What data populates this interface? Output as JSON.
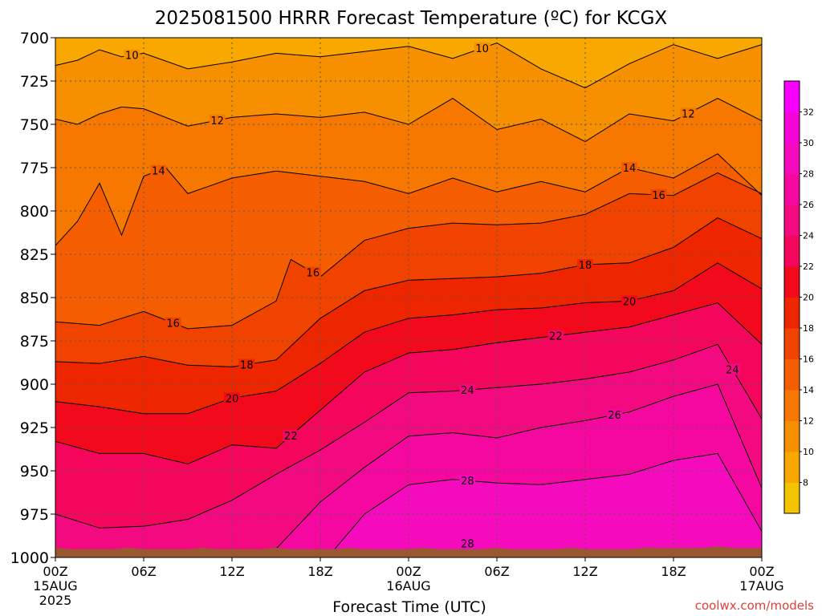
{
  "colors": {
    "background": "#ffffff",
    "ground": "#9a5832",
    "contour_line": "#000000",
    "grid": "#555555",
    "credit": "#e0403a"
  },
  "credit": "coolwx.com/models",
  "chart_data": {
    "type": "contour",
    "title": "2025081500 HRRR Forecast Temperature (ºC) for KCGX",
    "xlabel": "Forecast Time (UTC)",
    "ylabel": "",
    "x_ticks": [
      {
        "label": "00Z",
        "sub1": "15AUG",
        "sub2": "2025"
      },
      {
        "label": "06Z",
        "sub1": "",
        "sub2": ""
      },
      {
        "label": "12Z",
        "sub1": "",
        "sub2": ""
      },
      {
        "label": "18Z",
        "sub1": "",
        "sub2": ""
      },
      {
        "label": "00Z",
        "sub1": "16AUG",
        "sub2": ""
      },
      {
        "label": "06Z",
        "sub1": "",
        "sub2": ""
      },
      {
        "label": "12Z",
        "sub1": "",
        "sub2": ""
      },
      {
        "label": "18Z",
        "sub1": "",
        "sub2": ""
      },
      {
        "label": "00Z",
        "sub1": "17AUG",
        "sub2": ""
      }
    ],
    "xlim_hours": [
      0,
      48
    ],
    "y_ticks": [
      "700",
      "725",
      "750",
      "775",
      "800",
      "825",
      "850",
      "875",
      "900",
      "925",
      "950",
      "975",
      "1000"
    ],
    "ylim": [
      700,
      1000
    ],
    "grid": true,
    "colorbar": {
      "placement": "right",
      "bounds": [
        6,
        8,
        10,
        12,
        14,
        16,
        18,
        20,
        22,
        24,
        26,
        28,
        30,
        32,
        34
      ],
      "tick_labels": [
        "8",
        "10",
        "12",
        "14",
        "16",
        "18",
        "20",
        "22",
        "24",
        "26",
        "28",
        "30",
        "32"
      ],
      "colors": [
        "#f5c400",
        "#f8a800",
        "#f79000",
        "#f67800",
        "#f45e00",
        "#f04300",
        "#ee2600",
        "#f20a1c",
        "#f3065c",
        "#f40a80",
        "#f508a0",
        "#f50abe",
        "#f504d8",
        "#f800ff"
      ]
    },
    "ground_pressure_hpa": 995,
    "isotherms": [
      {
        "level": 10,
        "x": [
          0,
          1.5,
          3,
          4.5,
          6,
          9,
          12,
          15,
          18,
          21,
          24,
          27,
          30,
          33,
          36,
          39,
          42,
          45,
          48
        ],
        "p": [
          716,
          713,
          707,
          711,
          709,
          718,
          714,
          709,
          711,
          708,
          705,
          712,
          703,
          718,
          729,
          715,
          704,
          712,
          704
        ],
        "labels": [
          {
            "x": 5.2,
            "text": "10"
          },
          {
            "x": 29,
            "text": "10"
          }
        ]
      },
      {
        "level": 12,
        "x": [
          0,
          1.5,
          3,
          4.5,
          6,
          9,
          12,
          15,
          18,
          21,
          24,
          27,
          30,
          33,
          36,
          39,
          42,
          45,
          48
        ],
        "p": [
          747,
          750,
          744,
          740,
          741,
          751,
          746,
          744,
          746,
          743,
          750,
          735,
          753,
          747,
          760,
          744,
          748,
          735,
          748
        ],
        "labels": [
          {
            "x": 11,
            "text": "12"
          },
          {
            "x": 43,
            "text": "12"
          }
        ]
      },
      {
        "level": 14,
        "x": [
          0,
          1.5,
          3,
          4.5,
          6,
          7.5,
          9,
          12,
          15,
          18,
          21,
          24,
          27,
          30,
          33,
          36,
          39,
          42,
          45,
          48
        ],
        "p": [
          820,
          806,
          784,
          814,
          780,
          775,
          790,
          781,
          777,
          780,
          783,
          790,
          781,
          789,
          783,
          789,
          775,
          781,
          767,
          791
        ],
        "labels": [
          {
            "x": 7,
            "text": "14"
          },
          {
            "x": 39,
            "text": "14"
          }
        ]
      },
      {
        "level": 16,
        "x": [
          0,
          3,
          6,
          9,
          12,
          15,
          16,
          18,
          21,
          24,
          27,
          30,
          33,
          36,
          39,
          42,
          45,
          48
        ],
        "p": [
          864,
          866,
          858,
          868,
          866,
          852,
          828,
          838,
          817,
          810,
          807,
          808,
          807,
          802,
          790,
          791,
          778,
          790
        ],
        "labels": [
          {
            "x": 8,
            "text": "16"
          },
          {
            "x": 17.5,
            "text": "16"
          },
          {
            "x": 41,
            "text": "16"
          }
        ]
      },
      {
        "level": 18,
        "x": [
          0,
          3,
          6,
          9,
          12,
          15,
          18,
          21,
          24,
          27,
          30,
          33,
          36,
          39,
          42,
          45,
          48
        ],
        "p": [
          887,
          888,
          884,
          889,
          890,
          886,
          862,
          846,
          840,
          839,
          838,
          836,
          831,
          830,
          821,
          804,
          816
        ],
        "labels": [
          {
            "x": 13,
            "text": "18"
          },
          {
            "x": 36,
            "text": "18"
          }
        ]
      },
      {
        "level": 20,
        "x": [
          0,
          3,
          6,
          9,
          12,
          15,
          18,
          21,
          24,
          27,
          30,
          33,
          36,
          39,
          42,
          45,
          48
        ],
        "p": [
          910,
          913,
          917,
          917,
          908,
          904,
          888,
          870,
          862,
          860,
          857,
          856,
          853,
          852,
          846,
          830,
          845
        ],
        "labels": [
          {
            "x": 12,
            "text": "20"
          },
          {
            "x": 39,
            "text": "20"
          }
        ]
      },
      {
        "level": 22,
        "x": [
          0,
          3,
          6,
          9,
          12,
          15,
          18,
          21,
          24,
          27,
          30,
          33,
          36,
          39,
          42,
          45,
          48
        ],
        "p": [
          933,
          940,
          940,
          946,
          935,
          937,
          915,
          893,
          882,
          880,
          876,
          873,
          870,
          867,
          860,
          853,
          877
        ],
        "labels": [
          {
            "x": 16,
            "text": "22"
          },
          {
            "x": 34,
            "text": "22"
          }
        ]
      },
      {
        "level": 24,
        "x": [
          0,
          3,
          6,
          9,
          12,
          15,
          18,
          21,
          24,
          27,
          30,
          33,
          36,
          39,
          42,
          45,
          48
        ],
        "p": [
          975,
          983,
          982,
          978,
          967,
          952,
          938,
          922,
          905,
          904,
          902,
          900,
          897,
          893,
          886,
          877,
          920
        ],
        "labels": [
          {
            "x": 28,
            "text": "24"
          },
          {
            "x": 46,
            "text": "24"
          }
        ]
      },
      {
        "level": 26,
        "x": [
          15,
          18,
          21,
          24,
          27,
          30,
          33,
          36,
          39,
          42,
          45,
          48
        ],
        "p": [
          995,
          968,
          948,
          930,
          928,
          931,
          925,
          921,
          916,
          907,
          900,
          960
        ],
        "labels": [
          {
            "x": 38,
            "text": "26"
          }
        ]
      },
      {
        "level": 28,
        "x": [
          19,
          21,
          24,
          27,
          30,
          33,
          36,
          39,
          42,
          45,
          48
        ],
        "p": [
          995,
          975,
          958,
          955,
          957,
          958,
          955,
          952,
          944,
          940,
          985
        ],
        "labels": [
          {
            "x": 28,
            "text": "28"
          },
          {
            "x": 28,
            "text": "28",
            "p": 992
          }
        ]
      }
    ]
  }
}
